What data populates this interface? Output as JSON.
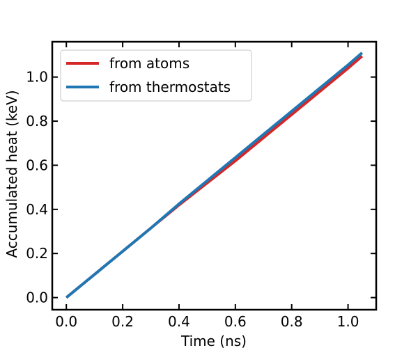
{
  "chart_data": {
    "type": "line",
    "xlabel": "Time (ns)",
    "ylabel": "Accumulated heat (keV)",
    "xlim": [
      -0.05,
      1.1
    ],
    "ylim": [
      -0.055,
      1.16
    ],
    "xticks": [
      0.0,
      0.2,
      0.4,
      0.6,
      0.8,
      1.0
    ],
    "xtick_labels": [
      "0.0",
      "0.2",
      "0.4",
      "0.6",
      "0.8",
      "1.0"
    ],
    "yticks": [
      0.0,
      0.2,
      0.4,
      0.6,
      0.8,
      1.0
    ],
    "ytick_labels": [
      "0.0",
      "0.2",
      "0.4",
      "0.6",
      "0.8",
      "1.0"
    ],
    "grid": false,
    "legend_position": "top-left",
    "series": [
      {
        "name": "from atoms",
        "color": "#d62728",
        "x": [
          0.0,
          0.1,
          0.2,
          0.3,
          0.4,
          0.5,
          0.6,
          0.7,
          0.8,
          0.9,
          1.0,
          1.05
        ],
        "y": [
          0.0,
          0.105,
          0.21,
          0.315,
          0.42,
          0.52,
          0.62,
          0.725,
          0.83,
          0.935,
          1.04,
          1.095
        ]
      },
      {
        "name": "from thermostats",
        "color": "#1f77b4",
        "x": [
          0.0,
          0.1,
          0.2,
          0.3,
          0.4,
          0.5,
          0.6,
          0.7,
          0.8,
          0.9,
          1.0,
          1.05
        ],
        "y": [
          0.0,
          0.105,
          0.21,
          0.315,
          0.425,
          0.53,
          0.635,
          0.74,
          0.845,
          0.95,
          1.055,
          1.11
        ]
      }
    ]
  }
}
